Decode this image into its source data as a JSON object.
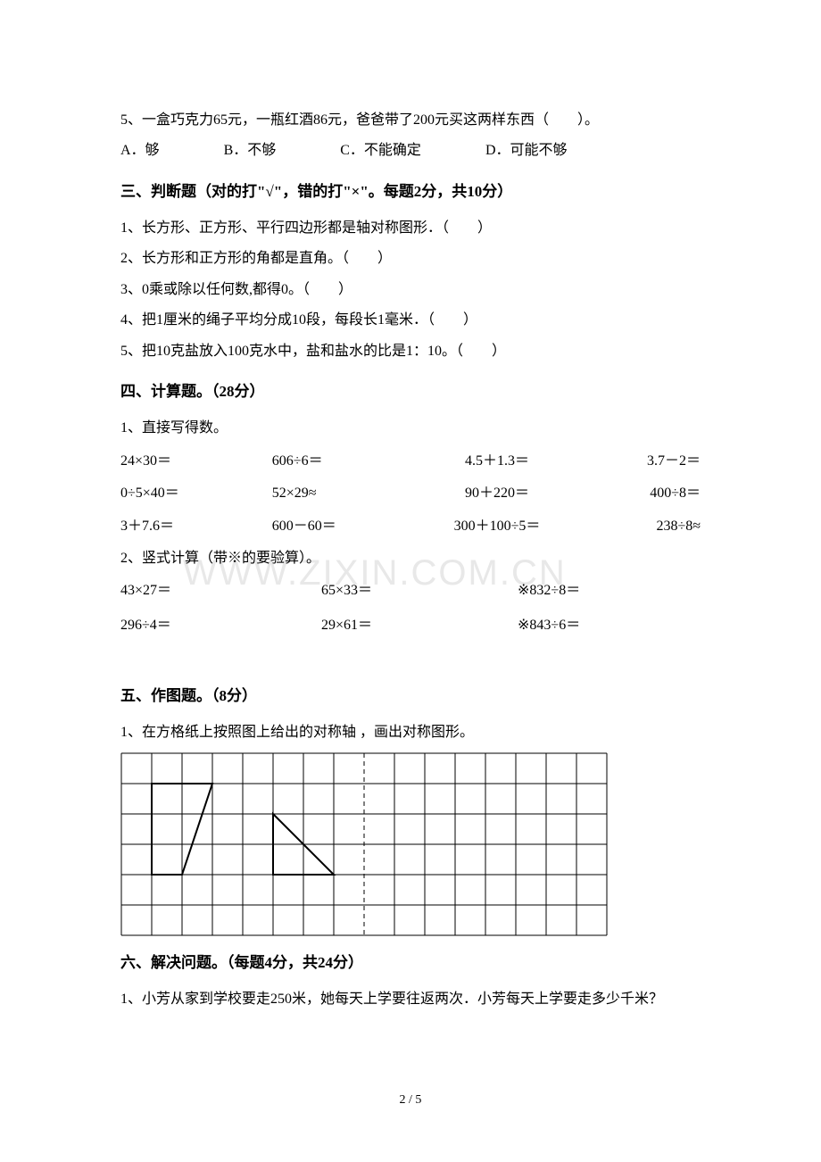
{
  "watermark": "WWW.ZIXIN.COM.CN",
  "q5": {
    "text": "5、一盒巧克力65元，一瓶红酒86元，爸爸带了200元买这两样东西（　　）。",
    "opts": [
      "A．够",
      "B．不够",
      "C．不能确定",
      "D．可能不够"
    ]
  },
  "section3": {
    "heading": "三、判断题（对的打\"√\"，错的打\"×\"。每题2分，共10分）",
    "items": [
      "1、长方形、正方形、平行四边形都是轴对称图形．（　　）",
      "2、长方形和正方形的角都是直角。（　　）",
      "3、0乘或除以任何数,都得0。（　　）",
      "4、把1厘米的绳子平均分成10段，每段长1毫米．（　　）",
      "5、把10克盐放入100克水中，盐和盐水的比是1：10。（　　）"
    ]
  },
  "section4": {
    "heading": "四、计算题。（28分）",
    "sub1": "1、直接写得数。",
    "rows1": [
      [
        "24×30＝",
        "606÷6＝",
        "4.5＋1.3＝",
        "3.7－2＝"
      ],
      [
        "0÷5×40＝",
        "52×29≈",
        "90＋220＝",
        "400÷8＝"
      ],
      [
        "3＋7.6＝",
        "600－60＝",
        "300＋100÷5＝",
        "238÷8≈"
      ]
    ],
    "sub2": "2、竖式计算（带※的要验算）。",
    "rows2": [
      [
        "43×27＝",
        "65×33＝",
        "※832÷8＝"
      ],
      [
        "296÷4＝",
        "29×61＝",
        "※843÷6＝"
      ]
    ]
  },
  "section5": {
    "heading": "五、作图题。（8分）",
    "sub1": "1、在方格纸上按照图上给出的对称轴 ，画出对称图形。"
  },
  "section6": {
    "heading": "六、解决问题。（每题4分，共24分）",
    "q1": "1、小芳从家到学校要走250米，她每天上学要往返两次．小芳每天上学要走多少千米？"
  },
  "grid": {
    "cols": 16,
    "rows": 6,
    "cell": 34,
    "stroke": "#000000",
    "strokeWidth": 1,
    "dashedCol": 8,
    "shapes": {
      "trapezoid": [
        [
          1,
          1
        ],
        [
          3,
          1
        ],
        [
          2,
          4
        ],
        [
          1,
          4
        ]
      ],
      "triangle": [
        [
          5,
          2
        ],
        [
          7,
          4
        ],
        [
          5,
          4
        ]
      ]
    }
  },
  "pageNum": "2 / 5"
}
